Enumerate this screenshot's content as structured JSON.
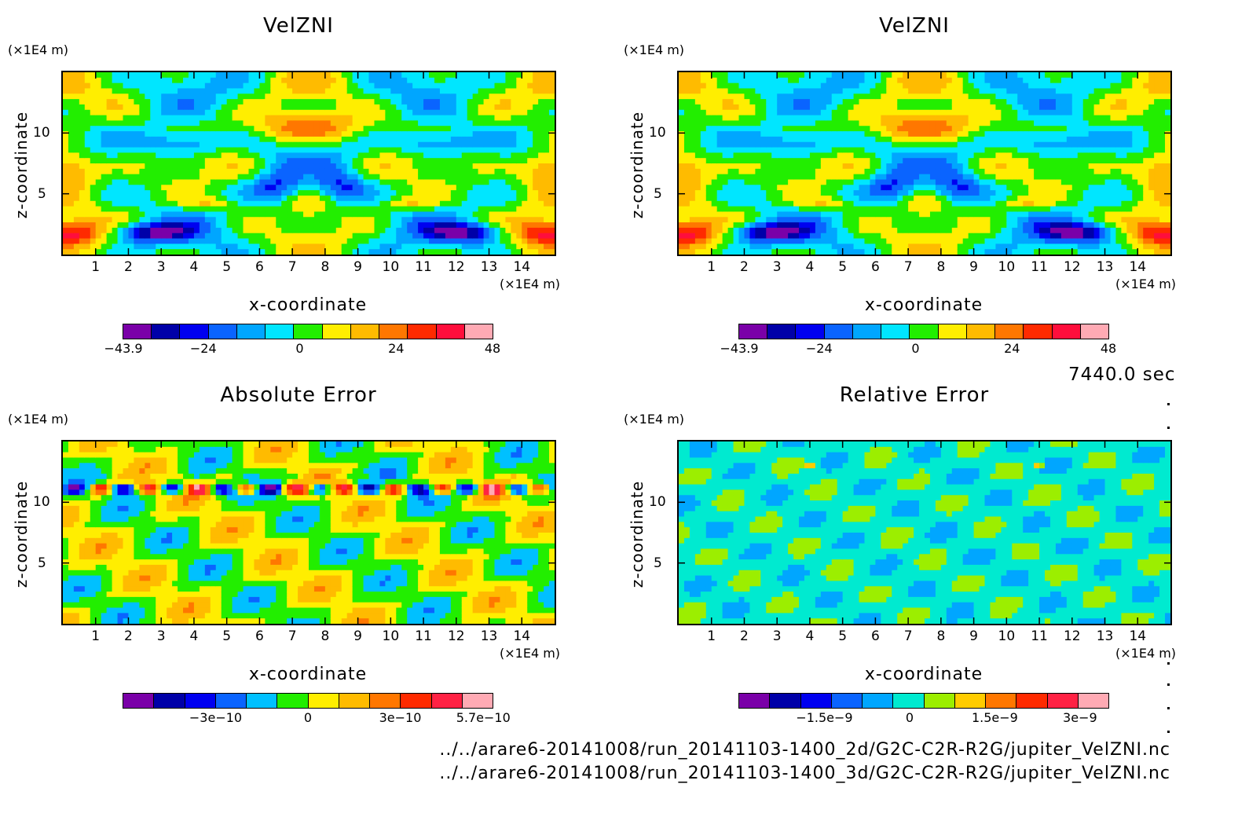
{
  "colors": {
    "velocity_scale": [
      "#7a00a8",
      "#0000a8",
      "#0000f0",
      "#0a64ff",
      "#00a6ff",
      "#00e6ff",
      "#22ee00",
      "#ffee00",
      "#ffbb00",
      "#ff7700",
      "#ff2a00",
      "#ff0e3c",
      "#ffaab4"
    ],
    "error_scale": [
      "#7a00a8",
      "#0000a8",
      "#0000f0",
      "#0a64ff",
      "#00c0ff",
      "#22ee00",
      "#ffee00",
      "#ffbb00",
      "#ff7700",
      "#ff2a00",
      "#ff2244",
      "#ffaab4"
    ],
    "relative_scale": [
      "#7a00a8",
      "#0000a8",
      "#0000f0",
      "#0a64ff",
      "#00a6ff",
      "#00ead0",
      "#9cee00",
      "#ffcc00",
      "#ff7700",
      "#ff2a00",
      "#ff2244",
      "#ffaab4"
    ]
  },
  "chart_data": [
    {
      "type": "heatmap",
      "title": "VelZNI",
      "xlabel": "x-coordinate",
      "ylabel": "z-coordinate",
      "x_unit": "(×1E4 m)",
      "y_unit": "(×1E4 m)",
      "xlim": [
        0,
        15
      ],
      "ylim": [
        0,
        15
      ],
      "xticks": [
        "1",
        "2",
        "3",
        "4",
        "5",
        "6",
        "7",
        "8",
        "9",
        "10",
        "11",
        "12",
        "13",
        "14"
      ],
      "yticks": [
        {
          "value": 5,
          "label": "5"
        },
        {
          "value": 10,
          "label": "10"
        }
      ],
      "colorbar_labels": [
        {
          "value": -43.9,
          "label": "−43.9"
        },
        {
          "value": -24,
          "label": "−24"
        },
        {
          "value": 0,
          "label": "0"
        },
        {
          "value": 24,
          "label": "24"
        },
        {
          "value": 48,
          "label": "48"
        }
      ],
      "colorbar_range": [
        -43.9,
        48
      ],
      "palette": "velocity_scale",
      "field": "velocity"
    },
    {
      "type": "heatmap",
      "title": "VelZNI",
      "xlabel": "x-coordinate",
      "ylabel": "z-coordinate",
      "x_unit": "(×1E4 m)",
      "y_unit": "(×1E4 m)",
      "xlim": [
        0,
        15
      ],
      "ylim": [
        0,
        15
      ],
      "xticks": [
        "1",
        "2",
        "3",
        "4",
        "5",
        "6",
        "7",
        "8",
        "9",
        "10",
        "11",
        "12",
        "13",
        "14"
      ],
      "yticks": [
        {
          "value": 5,
          "label": "5"
        },
        {
          "value": 10,
          "label": "10"
        }
      ],
      "colorbar_labels": [
        {
          "value": -43.9,
          "label": "−43.9"
        },
        {
          "value": -24,
          "label": "−24"
        },
        {
          "value": 0,
          "label": "0"
        },
        {
          "value": 24,
          "label": "24"
        },
        {
          "value": 48,
          "label": "48"
        }
      ],
      "colorbar_range": [
        -43.9,
        48
      ],
      "palette": "velocity_scale",
      "field": "velocity"
    },
    {
      "type": "heatmap",
      "title": "Absolute Error",
      "xlabel": "x-coordinate",
      "ylabel": "z-coordinate",
      "x_unit": "(×1E4 m)",
      "y_unit": "(×1E4 m)",
      "xlim": [
        0,
        15
      ],
      "ylim": [
        0,
        15
      ],
      "xticks": [
        "1",
        "2",
        "3",
        "4",
        "5",
        "6",
        "7",
        "8",
        "9",
        "10",
        "11",
        "12",
        "13",
        "14"
      ],
      "yticks": [
        {
          "value": 5,
          "label": "5"
        },
        {
          "value": 10,
          "label": "10"
        }
      ],
      "colorbar_labels": [
        {
          "value": -3e-10,
          "label": "−3e−10"
        },
        {
          "value": 0,
          "label": "0"
        },
        {
          "value": 3e-10,
          "label": "3e−10"
        },
        {
          "value": 5.7e-10,
          "label": "5.7e−10"
        }
      ],
      "colorbar_range": [
        -6e-10,
        6e-10
      ],
      "palette": "error_scale",
      "field": "abs_error"
    },
    {
      "type": "heatmap",
      "title": "Relative Error",
      "xlabel": "x-coordinate",
      "ylabel": "z-coordinate",
      "x_unit": "(×1E4 m)",
      "y_unit": "(×1E4 m)",
      "xlim": [
        0,
        15
      ],
      "ylim": [
        0,
        15
      ],
      "xticks": [
        "1",
        "2",
        "3",
        "4",
        "5",
        "6",
        "7",
        "8",
        "9",
        "10",
        "11",
        "12",
        "13",
        "14"
      ],
      "yticks": [
        {
          "value": 5,
          "label": "5"
        },
        {
          "value": 10,
          "label": "10"
        }
      ],
      "colorbar_labels": [
        {
          "value": -1.5e-09,
          "label": "−1.5e−9"
        },
        {
          "value": 0,
          "label": "0"
        },
        {
          "value": 1.5e-09,
          "label": "1.5e−9"
        },
        {
          "value": 3e-09,
          "label": "3e−9"
        }
      ],
      "colorbar_range": [
        -3e-09,
        3.5e-09
      ],
      "palette": "relative_scale",
      "field": "rel_error"
    }
  ],
  "timestamp": "7440.0 sec",
  "file_paths": [
    "../../arare6-20141008/run_20141103-1400_2d/G2C-C2R-R2G/jupiter_VelZNI.nc",
    "../../arare6-20141008/run_20141103-1400_3d/G2C-C2R-R2G/jupiter_VelZNI.nc"
  ]
}
